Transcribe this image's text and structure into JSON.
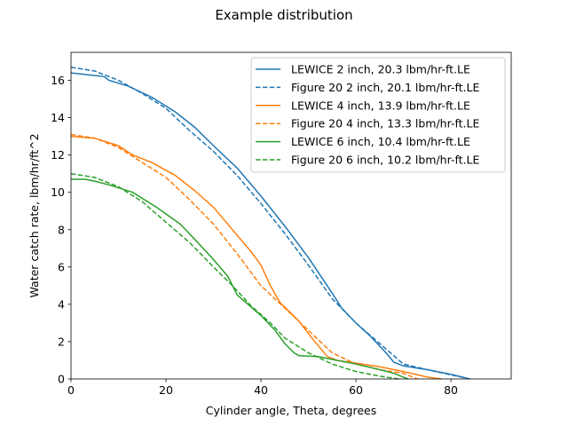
{
  "chart_data": {
    "type": "line",
    "title": "Example distribution",
    "xlabel": "Cylinder angle, Theta, degrees",
    "ylabel": "Water catch rate, lbm/hr/ft^2",
    "xlim": [
      0,
      92.7
    ],
    "ylim": [
      0,
      17.5
    ],
    "xticks": [
      0,
      20,
      40,
      60,
      80
    ],
    "yticks": [
      0,
      2,
      4,
      6,
      8,
      10,
      12,
      14,
      16
    ],
    "grid": false,
    "legend": "top-right",
    "series": [
      {
        "name": "LEWICE 2 inch, 20.3 lbm/hr-ft.LE",
        "color": "#1f77b4",
        "dash": false,
        "x": [
          0,
          7,
          8,
          12,
          17,
          22,
          26,
          30,
          35,
          40,
          45,
          50,
          55,
          57,
          60,
          63,
          66,
          68,
          70,
          75,
          80,
          84
        ],
        "y": [
          16.4,
          16.2,
          16.0,
          15.7,
          15.1,
          14.3,
          13.5,
          12.5,
          11.3,
          9.8,
          8.2,
          6.5,
          4.6,
          3.8,
          3.0,
          2.3,
          1.5,
          0.9,
          0.7,
          0.5,
          0.25,
          0.0
        ]
      },
      {
        "name": "Figure 20 2 inch, 20.1 lbm/hr-ft.LE",
        "color": "#1f77b4",
        "dash": true,
        "x": [
          0,
          5,
          10,
          15,
          20,
          25,
          30,
          35,
          40,
          45,
          50,
          55,
          60,
          65,
          70,
          75,
          83
        ],
        "y": [
          16.7,
          16.5,
          16.0,
          15.3,
          14.5,
          13.3,
          12.2,
          10.9,
          9.4,
          7.8,
          6.1,
          4.3,
          3.0,
          1.9,
          0.8,
          0.5,
          0.05
        ]
      },
      {
        "name": "LEWICE 4 inch, 13.9 lbm/hr-ft.LE",
        "color": "#ff7f0e",
        "dash": false,
        "x": [
          0,
          5,
          10,
          13,
          17,
          22,
          26,
          30,
          34,
          38,
          40,
          42,
          44,
          48,
          51,
          54,
          56,
          60,
          65,
          70,
          75,
          78
        ],
        "y": [
          13.0,
          12.9,
          12.5,
          12.0,
          11.6,
          10.9,
          10.1,
          9.2,
          8.0,
          6.8,
          6.1,
          5.0,
          4.1,
          3.1,
          2.1,
          1.2,
          1.0,
          0.85,
          0.65,
          0.4,
          0.1,
          0.0
        ]
      },
      {
        "name": "Figure 20 4 inch, 13.3 lbm/hr-ft.LE",
        "color": "#ff7f0e",
        "dash": true,
        "x": [
          0,
          5,
          10,
          15,
          20,
          25,
          30,
          35,
          40,
          45,
          50,
          55,
          60,
          65,
          70,
          73
        ],
        "y": [
          13.1,
          12.9,
          12.4,
          11.6,
          10.8,
          9.6,
          8.3,
          6.7,
          5.0,
          3.8,
          2.6,
          1.4,
          0.8,
          0.5,
          0.3,
          0.0
        ]
      },
      {
        "name": "LEWICE 6 inch, 10.4 lbm/hr-ft.LE",
        "color": "#2ca02c",
        "dash": false,
        "x": [
          0,
          3,
          5,
          8,
          13,
          18,
          23,
          26,
          30,
          33,
          35,
          40,
          43,
          45,
          47,
          48,
          52,
          56,
          60,
          65,
          68,
          70,
          71
        ],
        "y": [
          10.7,
          10.7,
          10.6,
          10.4,
          10.0,
          9.2,
          8.3,
          7.5,
          6.4,
          5.5,
          4.5,
          3.4,
          2.6,
          1.9,
          1.4,
          1.25,
          1.2,
          1.0,
          0.8,
          0.5,
          0.3,
          0.1,
          0.0
        ]
      },
      {
        "name": "Figure 20 6 inch, 10.2 lbm/hr-ft.LE",
        "color": "#2ca02c",
        "dash": true,
        "x": [
          0,
          5,
          10,
          15,
          20,
          25,
          30,
          34,
          38,
          42,
          45,
          50,
          55,
          60,
          65,
          69
        ],
        "y": [
          11.0,
          10.8,
          10.3,
          9.5,
          8.4,
          7.3,
          6.0,
          5.0,
          3.9,
          3.0,
          2.2,
          1.4,
          0.8,
          0.4,
          0.15,
          0.0
        ]
      }
    ]
  }
}
